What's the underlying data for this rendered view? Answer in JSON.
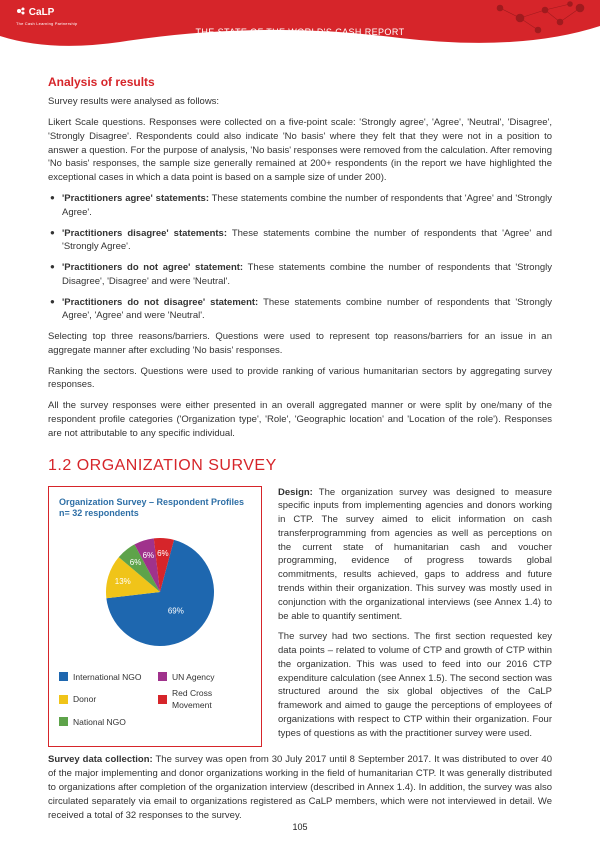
{
  "banner": {
    "logo_main": "CaLP",
    "logo_sub": "The Cash Learning Partnership",
    "title": "THE STATE OF THE WORLD'S CASH REPORT"
  },
  "analysis": {
    "heading": "Analysis of results",
    "intro": "Survey results were analysed as follows:",
    "likert": "Likert Scale questions. Responses were collected on a five-point scale: 'Strongly agree', 'Agree', 'Neutral', 'Disagree', 'Strongly Disagree'. Respondents could also indicate 'No basis' where they felt that they were not in a position to answer a question. For the purpose of analysis, 'No basis' responses were removed from the calculation. After removing 'No basis' responses, the sample size generally remained at 200+ respondents (in the report we have highlighted the exceptional cases in which a data point is based on a sample size of under 200).",
    "bullets": [
      {
        "b": "'Practitioners agree' statements:",
        "t": " These statements combine the number of respondents that 'Agree' and 'Strongly Agree'."
      },
      {
        "b": "'Practitioners disagree' statements:",
        "t": " These statements combine the number of respondents that 'Agree' and 'Strongly Agree'."
      },
      {
        "b": "'Practitioners do not agree' statement:",
        "t": " These statements combine the number of respondents that 'Strongly Disagree', 'Disagree' and were 'Neutral'."
      },
      {
        "b": "'Practitioners do not disagree' statement:",
        "t": " These statements combine number of respondents that 'Strongly Agree', 'Agree' and were 'Neutral'."
      }
    ],
    "p_after1": "Selecting top three reasons/barriers. Questions were used to represent top reasons/barriers for an issue in an aggregate manner after excluding 'No basis' responses.",
    "p_after2": "Ranking the sectors. Questions were used to provide ranking of various humanitarian sectors by aggregating survey responses.",
    "p_after3": "All the survey responses were either presented in an overall aggregated manner or were split by one/many of the respondent profile categories ('Organization type', 'Role', 'Geographic location' and 'Location of the role'). Responses are not attributable to any specific individual."
  },
  "section12": {
    "heading": "1.2  ORGANIZATION SURVEY",
    "design_label": "Design:",
    "design_text": " The organization survey was designed to measure specific inputs from implementing agencies and donors working in CTP. The survey aimed to elicit information on cash transferprogramming from agencies as well as perceptions on the current state of humanitarian cash and voucher programming, evidence of progress towards global commitments, results achieved, gaps to address and future trends within their organization. This survey was mostly used in conjunction with the organizational interviews (see Annex 1.4) to be able to quantify sentiment.",
    "p2": "The survey had two sections. The first section requested key data points – related to volume of CTP and growth of CTP within the organization. This was used to feed into our 2016 CTP expenditure calculation (see Annex 1.5). The second section was structured around the six global objectives of the CaLP framework and aimed to gauge the perceptions of employees of organizations with respect to CTP within their organization. Four types of questions as with the practitioner survey were used.",
    "collection_label": "Survey data collection:",
    "collection_text": " The survey was open from 30 July 2017 until 8 September 2017. It was distributed to over 40 of the major implementing and donor organizations working in the field of humanitarian CTP. It was generally distributed to organizations after completion of the organization interview (described in Annex 1.4). In addition, the survey was also circulated separately via email to organizations registered as CaLP members, which were not interviewed in detail. We received a total of 32 responses to the survey."
  },
  "chart": {
    "type": "pie",
    "title": "Organization Survey – Respondent Profiles\nn= 32 respondents",
    "background_color": "#ffffff",
    "border_color": "#d6252a",
    "label_fontsize": 8,
    "slices": [
      {
        "label": "International NGO",
        "value": 69,
        "color": "#1e67af",
        "text": "69%"
      },
      {
        "label": "Donor",
        "value": 13,
        "color": "#f0c419",
        "text": "13%"
      },
      {
        "label": "National NGO",
        "value": 6,
        "color": "#5ea34a",
        "text": "6%"
      },
      {
        "label": "UN Agency",
        "value": 6,
        "color": "#a0328c",
        "text": "6%"
      },
      {
        "label": "Red Cross Movement",
        "value": 6,
        "color": "#d6252a",
        "text": "6%"
      }
    ]
  },
  "page_number": "105"
}
